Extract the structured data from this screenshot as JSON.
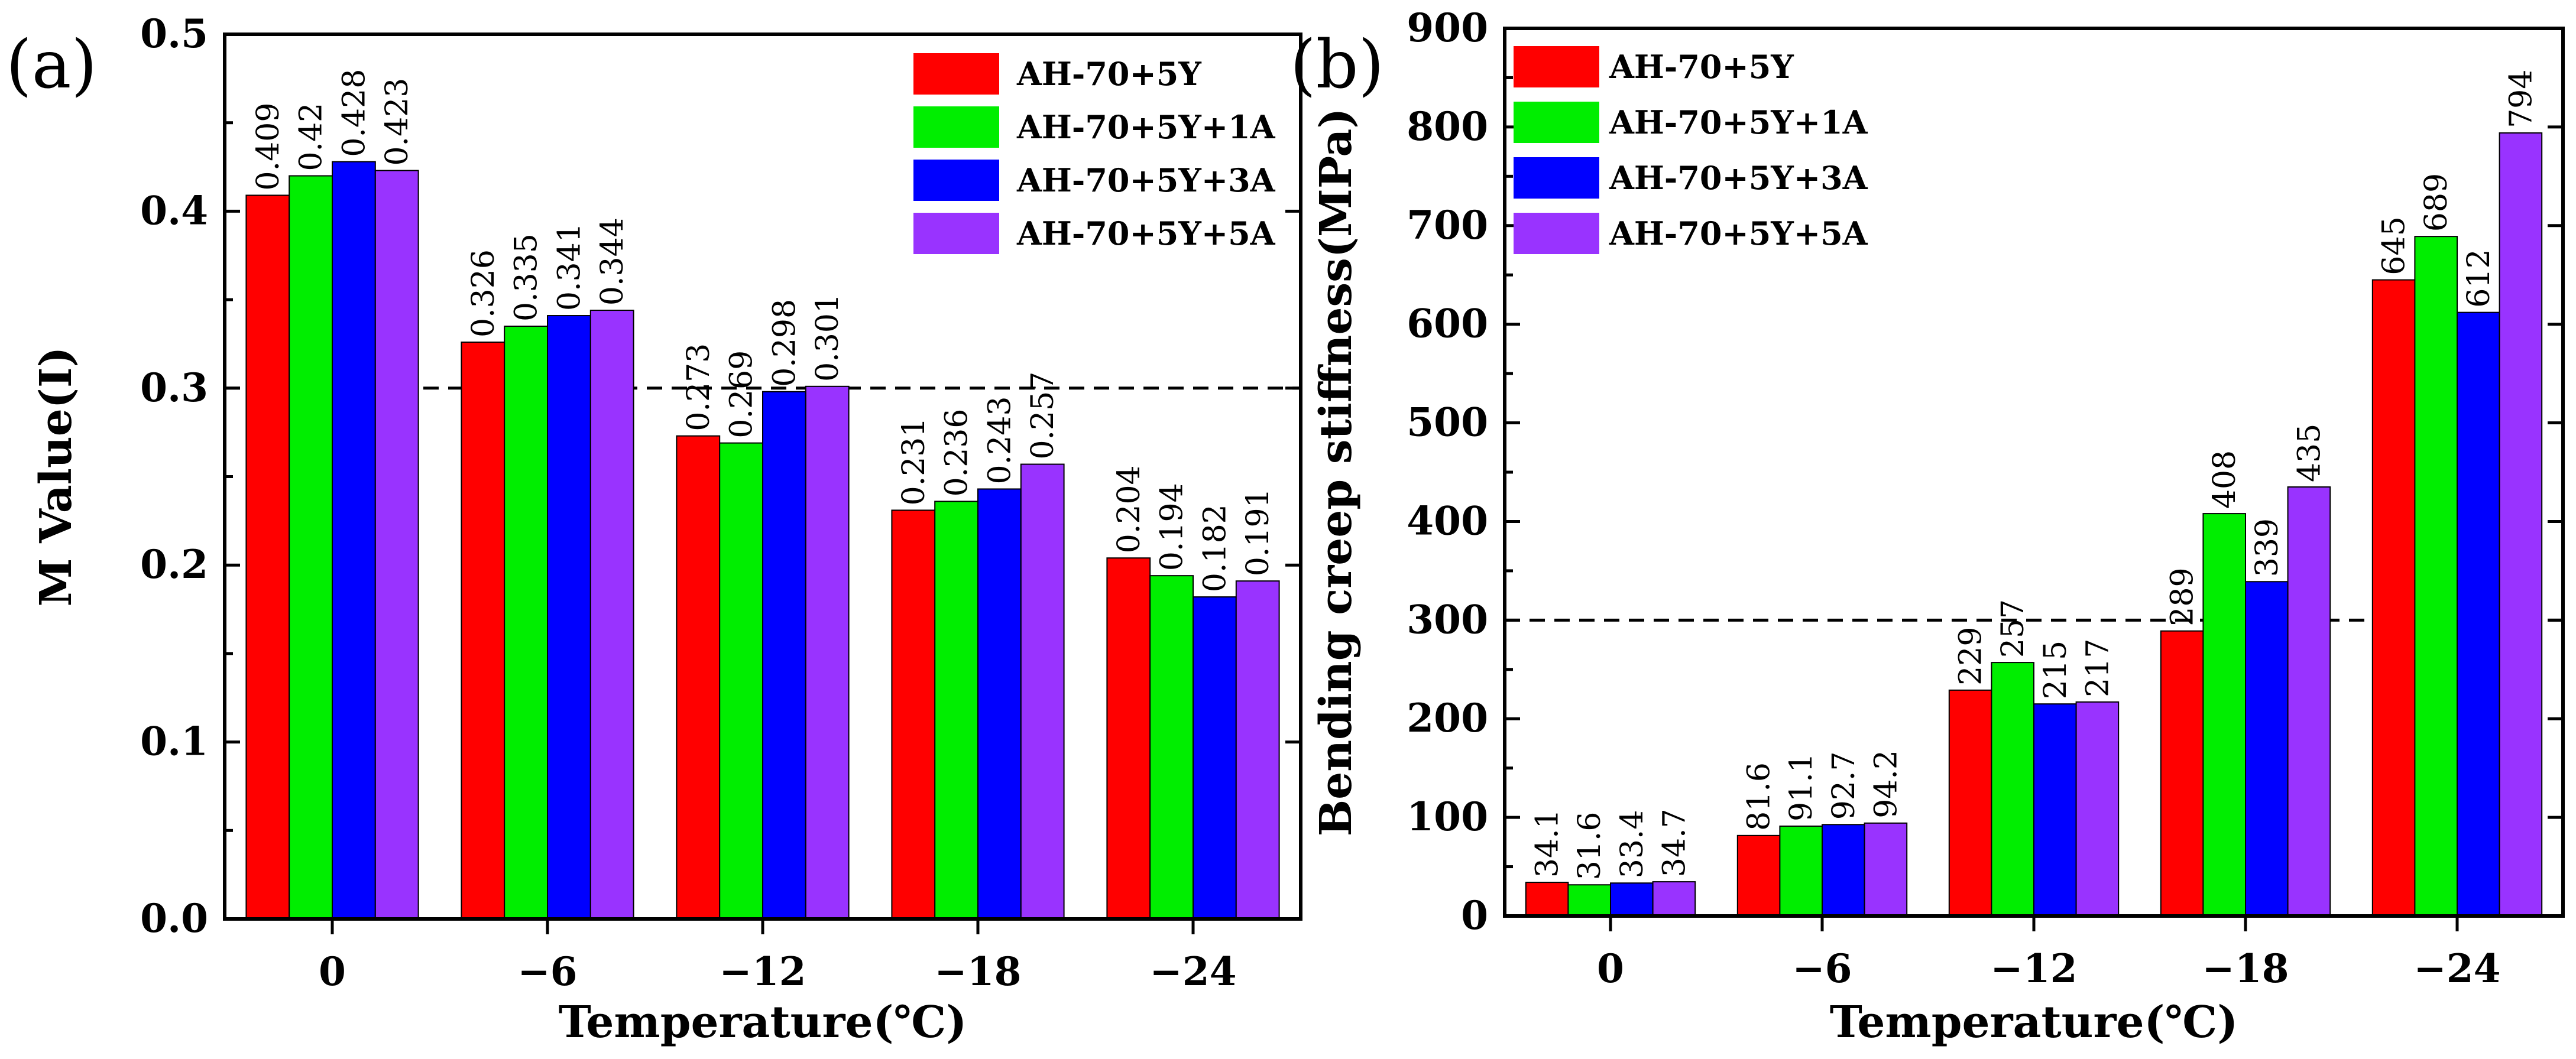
{
  "chart_data": [
    {
      "type": "bar",
      "panel_label": "(a)",
      "title": "",
      "xlabel": "Temperature(℃)",
      "ylabel": "M Value(I)",
      "categories": [
        "0",
        "−6",
        "−12",
        "−18",
        "−24"
      ],
      "ylim": [
        0.0,
        0.5
      ],
      "yticks": [
        "0.0",
        "0.1",
        "0.2",
        "0.3",
        "0.4",
        "0.5"
      ],
      "reference_line": 0.3,
      "legend_position": "top-right",
      "series": [
        {
          "name": "AH-70+5Y",
          "color": "#ff0000",
          "values": [
            0.409,
            0.326,
            0.273,
            0.231,
            0.204
          ],
          "labels": [
            "0.409",
            "0.326",
            "0.273",
            "0.231",
            "0.204"
          ]
        },
        {
          "name": "AH-70+5Y+1A",
          "color": "#00ee00",
          "values": [
            0.42,
            0.335,
            0.269,
            0.236,
            0.194
          ],
          "labels": [
            "0.42",
            "0.335",
            "0.269",
            "0.236",
            "0.194"
          ]
        },
        {
          "name": "AH-70+5Y+3A",
          "color": "#0000ff",
          "values": [
            0.428,
            0.341,
            0.298,
            0.243,
            0.182
          ],
          "labels": [
            "0.428",
            "0.341",
            "0.298",
            "0.243",
            "0.182"
          ]
        },
        {
          "name": "AH-70+5Y+5A",
          "color": "#9933ff",
          "values": [
            0.423,
            0.344,
            0.301,
            0.257,
            0.191
          ],
          "labels": [
            "0.423",
            "0.344",
            "0.301",
            "0.257",
            "0.191"
          ]
        }
      ]
    },
    {
      "type": "bar",
      "panel_label": "(b)",
      "title": "",
      "xlabel": "Temperature(℃)",
      "ylabel": "Bending creep stiffness(MPa)",
      "categories": [
        "0",
        "−6",
        "−12",
        "−18",
        "−24"
      ],
      "ylim": [
        0,
        900
      ],
      "yticks": [
        "0",
        "100",
        "200",
        "300",
        "400",
        "500",
        "600",
        "700",
        "800",
        "900"
      ],
      "reference_line": 300,
      "legend_position": "top-left",
      "series": [
        {
          "name": "AH-70+5Y",
          "color": "#ff0000",
          "values": [
            34.1,
            81.6,
            229,
            289,
            645
          ],
          "labels": [
            "34.1",
            "81.6",
            "229",
            "289",
            "645"
          ]
        },
        {
          "name": "AH-70+5Y+1A",
          "color": "#00ee00",
          "values": [
            31.6,
            91.1,
            257,
            408,
            689
          ],
          "labels": [
            "31.6",
            "91.1",
            "257",
            "408",
            "689"
          ]
        },
        {
          "name": "AH-70+5Y+3A",
          "color": "#0000ff",
          "values": [
            33.4,
            92.7,
            215,
            339,
            612
          ],
          "labels": [
            "33.4",
            "92.7",
            "215",
            "339",
            "612"
          ]
        },
        {
          "name": "AH-70+5Y+5A",
          "color": "#9933ff",
          "values": [
            34.7,
            94.2,
            217,
            435,
            794
          ],
          "labels": [
            "34.7",
            "94.2",
            "217",
            "435",
            "794"
          ]
        }
      ]
    }
  ]
}
